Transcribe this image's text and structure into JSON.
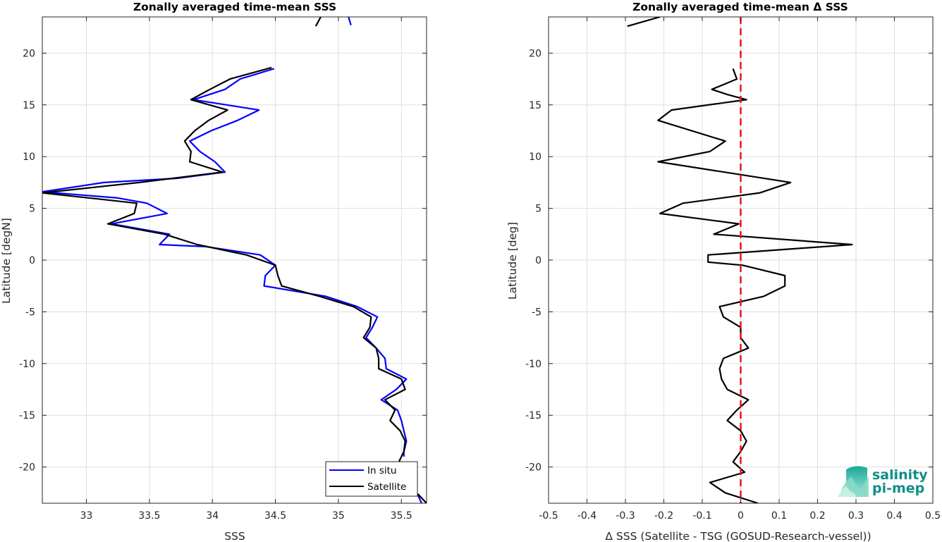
{
  "chart_data": [
    {
      "type": "line",
      "title": "Zonally averaged time-mean SSS",
      "xlabel": "SSS",
      "ylabel": "Latitude [degN]",
      "xlim": [
        32.65,
        35.7
      ],
      "ylim": [
        -23.5,
        23.5
      ],
      "xticks": [
        33,
        33.5,
        34,
        34.5,
        35,
        35.5
      ],
      "xtick_labels": [
        "33",
        "33.5",
        "34",
        "34.5",
        "35",
        "35.5"
      ],
      "yticks": [
        -20,
        -15,
        -10,
        -5,
        0,
        5,
        10,
        15,
        20
      ],
      "ytick_labels": [
        "-20",
        "-15",
        "-10",
        "-5",
        "0",
        "5",
        "10",
        "15",
        "20"
      ],
      "grid": true,
      "legend": "bottom-right",
      "series": [
        {
          "name": "In situ",
          "color": "#0000ff",
          "segments": [
            [
              [
                35.1,
                22.7
              ],
              [
                35.08,
                23.5
              ]
            ],
            [
              [
                34.49,
                18.5
              ],
              [
                34.22,
                17.5
              ],
              [
                34.1,
                16.5
              ],
              [
                33.85,
                15.5
              ],
              [
                34.37,
                14.5
              ],
              [
                34.2,
                13.5
              ],
              [
                33.99,
                12.5
              ],
              [
                33.82,
                11.5
              ],
              [
                33.9,
                10.5
              ],
              [
                34.02,
                9.5
              ],
              [
                34.1,
                8.5
              ],
              [
                33.72,
                7.9
              ],
              [
                33.14,
                7.5
              ],
              [
                32.65,
                6.6
              ],
              [
                33.25,
                6.0
              ],
              [
                33.48,
                5.5
              ],
              [
                33.64,
                4.5
              ],
              [
                33.2,
                3.5
              ],
              [
                33.66,
                2.5
              ],
              [
                33.58,
                1.5
              ],
              [
                33.95,
                1.3
              ],
              [
                34.38,
                0.5
              ],
              [
                34.5,
                -0.5
              ],
              [
                34.42,
                -1.5
              ],
              [
                34.41,
                -2.5
              ],
              [
                34.9,
                -3.5
              ],
              [
                35.15,
                -4.5
              ],
              [
                35.31,
                -5.5
              ],
              [
                35.27,
                -6.5
              ],
              [
                35.22,
                -7.5
              ],
              [
                35.3,
                -8.5
              ],
              [
                35.37,
                -9.5
              ],
              [
                35.38,
                -10.5
              ],
              [
                35.54,
                -11.5
              ],
              [
                35.46,
                -12.5
              ],
              [
                35.34,
                -13.5
              ],
              [
                35.47,
                -14.5
              ],
              [
                35.5,
                -15.5
              ],
              [
                35.52,
                -16.5
              ],
              [
                35.54,
                -17.5
              ],
              [
                35.52,
                -18.5
              ],
              [
                35.52,
                -19.0
              ]
            ],
            [
              [
                35.62,
                -22.4
              ],
              [
                35.66,
                -23.5
              ]
            ]
          ]
        },
        {
          "name": "Satellite",
          "color": "#000000",
          "segments": [
            [
              [
                34.82,
                22.6
              ],
              [
                34.86,
                23.5
              ]
            ],
            [
              [
                34.47,
                18.6
              ],
              [
                34.14,
                17.5
              ],
              [
                33.98,
                16.5
              ],
              [
                33.83,
                15.5
              ],
              [
                34.12,
                14.5
              ],
              [
                33.97,
                13.5
              ],
              [
                33.86,
                12.5
              ],
              [
                33.78,
                11.5
              ],
              [
                33.83,
                10.5
              ],
              [
                33.82,
                9.5
              ],
              [
                34.08,
                8.5
              ],
              [
                33.42,
                7.5
              ],
              [
                32.65,
                6.5
              ],
              [
                33.4,
                5.5
              ],
              [
                33.38,
                4.5
              ],
              [
                33.17,
                3.5
              ],
              [
                33.62,
                2.5
              ],
              [
                33.88,
                1.5
              ],
              [
                34.27,
                0.5
              ],
              [
                34.5,
                -0.5
              ],
              [
                34.52,
                -1.5
              ],
              [
                34.55,
                -2.5
              ],
              [
                34.85,
                -3.5
              ],
              [
                35.12,
                -4.5
              ],
              [
                35.26,
                -5.5
              ],
              [
                35.25,
                -6.5
              ],
              [
                35.2,
                -7.5
              ],
              [
                35.3,
                -8.5
              ],
              [
                35.32,
                -9.5
              ],
              [
                35.32,
                -10.5
              ],
              [
                35.5,
                -11.5
              ],
              [
                35.53,
                -12.5
              ],
              [
                35.37,
                -13.5
              ],
              [
                35.45,
                -14.5
              ],
              [
                35.41,
                -15.5
              ],
              [
                35.49,
                -16.5
              ],
              [
                35.53,
                -17.5
              ],
              [
                35.52,
                -18.5
              ],
              [
                35.48,
                -19.5
              ],
              [
                35.43,
                -20.0
              ]
            ],
            [
              [
                35.63,
                -22.6
              ],
              [
                35.7,
                -23.5
              ]
            ]
          ]
        }
      ]
    },
    {
      "type": "line",
      "title": "Zonally averaged time-mean Δ SSS",
      "xlabel": "Δ SSS (Satellite - TSG (GOSUD-Research-vessel))",
      "ylabel": "Latitude [deg]",
      "xlim": [
        -0.5,
        0.5
      ],
      "ylim": [
        -23.5,
        23.5
      ],
      "xticks": [
        -0.5,
        -0.4,
        -0.3,
        -0.2,
        -0.1,
        0,
        0.1,
        0.2,
        0.3,
        0.4,
        0.5
      ],
      "xtick_labels": [
        "-0.5",
        "-0.4",
        "-0.3",
        "-0.2",
        "-0.1",
        "0",
        "0.1",
        "0.2",
        "0.3",
        "0.4",
        "0.5"
      ],
      "yticks": [
        -20,
        -15,
        -10,
        -5,
        0,
        5,
        10,
        15,
        20
      ],
      "ytick_labels": [
        "-20",
        "-15",
        "-10",
        "-5",
        "0",
        "5",
        "10",
        "15",
        "20"
      ],
      "grid": true,
      "reference_line": {
        "x": 0,
        "color": "#e8141b",
        "style": "dashed"
      },
      "series": [
        {
          "color": "#000000",
          "segments": [
            [
              [
                -0.295,
                22.6
              ],
              [
                -0.21,
                23.5
              ]
            ],
            [
              [
                -0.02,
                18.5
              ],
              [
                -0.01,
                17.5
              ],
              [
                -0.075,
                16.5
              ],
              [
                -0.035,
                16.0
              ],
              [
                0.015,
                15.5
              ],
              [
                -0.18,
                14.5
              ],
              [
                -0.215,
                13.5
              ],
              [
                -0.04,
                11.5
              ],
              [
                -0.08,
                10.5
              ],
              [
                -0.215,
                9.5
              ],
              [
                0.13,
                7.5
              ],
              [
                0.05,
                6.5
              ],
              [
                -0.15,
                5.5
              ],
              [
                -0.21,
                4.5
              ],
              [
                -0.005,
                3.5
              ],
              [
                -0.07,
                2.5
              ],
              [
                0.29,
                1.5
              ],
              [
                -0.085,
                0.5
              ],
              [
                -0.085,
                -0.2
              ],
              [
                0.005,
                -0.5
              ],
              [
                0.115,
                -1.5
              ],
              [
                0.115,
                -2.5
              ],
              [
                0.06,
                -3.5
              ],
              [
                -0.055,
                -4.5
              ],
              [
                -0.045,
                -5.5
              ],
              [
                0.0,
                -6.5
              ],
              [
                0.0,
                -7.5
              ],
              [
                0.02,
                -8.5
              ],
              [
                -0.045,
                -9.5
              ],
              [
                -0.055,
                -10.5
              ],
              [
                -0.05,
                -11.5
              ],
              [
                -0.035,
                -12.5
              ],
              [
                0.02,
                -13.5
              ],
              [
                -0.01,
                -14.5
              ],
              [
                -0.035,
                -15.5
              ],
              [
                0.0,
                -16.5
              ],
              [
                0.015,
                -17.5
              ],
              [
                0.0,
                -18.5
              ],
              [
                -0.02,
                -19.5
              ],
              [
                0.01,
                -20.5
              ],
              [
                -0.08,
                -21.5
              ],
              [
                -0.04,
                -22.5
              ],
              [
                0.045,
                -23.5
              ]
            ]
          ]
        }
      ]
    }
  ],
  "logo": {
    "line1": "salinity",
    "line2": "pi-mep"
  }
}
